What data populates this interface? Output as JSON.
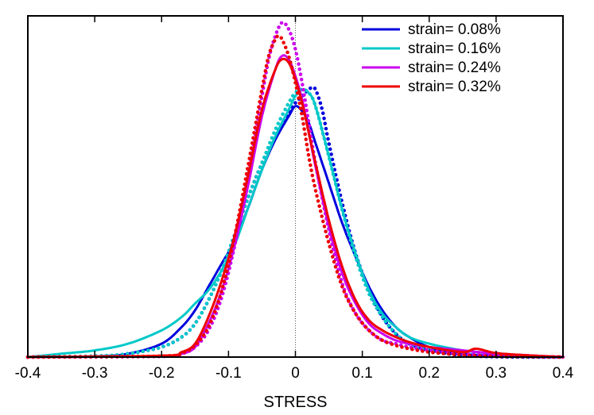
{
  "chart_data": {
    "type": "line",
    "title": "",
    "xlabel": "STRESS",
    "ylabel": "",
    "xlim": [
      -0.4,
      0.4
    ],
    "ylim": [
      0,
      1.02
    ],
    "xticks": [
      "-0.4",
      "-0.3",
      "-0.2",
      "-0.1",
      "0",
      "0.1",
      "0.2",
      "0.3",
      "0.4"
    ],
    "grid": false,
    "zero_line": true,
    "legend": "top-right",
    "series": [
      {
        "name": "strain= 0.08%",
        "color": "#0000dd",
        "solid": {
          "x": [
            -0.4,
            -0.3,
            -0.25,
            -0.2,
            -0.17,
            -0.15,
            -0.13,
            -0.11,
            -0.09,
            -0.07,
            -0.05,
            -0.03,
            -0.01,
            0.0,
            0.01,
            0.02,
            0.03,
            0.05,
            0.07,
            0.09,
            0.11,
            0.13,
            0.15,
            0.17,
            0.2,
            0.25,
            0.3,
            0.35,
            0.4
          ],
          "y": [
            0.0,
            0.002,
            0.01,
            0.04,
            0.09,
            0.14,
            0.21,
            0.28,
            0.35,
            0.45,
            0.56,
            0.65,
            0.72,
            0.75,
            0.735,
            0.7,
            0.64,
            0.52,
            0.4,
            0.3,
            0.21,
            0.14,
            0.09,
            0.06,
            0.03,
            0.01,
            0.004,
            0.001,
            0.0
          ]
        },
        "dotted": {
          "x": [
            -0.4,
            -0.3,
            -0.25,
            -0.2,
            -0.17,
            -0.15,
            -0.13,
            -0.11,
            -0.09,
            -0.07,
            -0.05,
            -0.03,
            -0.01,
            0.0,
            0.01,
            0.02,
            0.025,
            0.03,
            0.04,
            0.05,
            0.07,
            0.09,
            0.11,
            0.13,
            0.15,
            0.17,
            0.2,
            0.25,
            0.3,
            0.35,
            0.4
          ],
          "y": [
            0.0,
            0.002,
            0.01,
            0.03,
            0.06,
            0.1,
            0.17,
            0.26,
            0.37,
            0.48,
            0.58,
            0.66,
            0.73,
            0.76,
            0.78,
            0.8,
            0.805,
            0.8,
            0.74,
            0.64,
            0.46,
            0.31,
            0.2,
            0.12,
            0.07,
            0.04,
            0.02,
            0.005,
            0.001,
            0.0,
            0.0
          ]
        }
      },
      {
        "name": "strain= 0.16%",
        "color": "#00c8c8",
        "solid": {
          "x": [
            -0.4,
            -0.35,
            -0.3,
            -0.25,
            -0.2,
            -0.17,
            -0.15,
            -0.13,
            -0.11,
            -0.09,
            -0.07,
            -0.05,
            -0.03,
            -0.01,
            0.0,
            0.01,
            0.02,
            0.03,
            0.05,
            0.07,
            0.09,
            0.11,
            0.13,
            0.15,
            0.17,
            0.2,
            0.25,
            0.3,
            0.35,
            0.4
          ],
          "y": [
            0.0,
            0.01,
            0.02,
            0.04,
            0.08,
            0.12,
            0.16,
            0.2,
            0.26,
            0.34,
            0.45,
            0.56,
            0.66,
            0.74,
            0.78,
            0.8,
            0.79,
            0.75,
            0.6,
            0.44,
            0.31,
            0.2,
            0.13,
            0.09,
            0.06,
            0.04,
            0.02,
            0.01,
            0.004,
            0.0
          ]
        },
        "dotted": {
          "x": [
            -0.4,
            -0.3,
            -0.25,
            -0.2,
            -0.17,
            -0.15,
            -0.13,
            -0.11,
            -0.09,
            -0.07,
            -0.05,
            -0.03,
            -0.01,
            0.0,
            0.01,
            0.02,
            0.03,
            0.05,
            0.07,
            0.09,
            0.11,
            0.13,
            0.15,
            0.17,
            0.2,
            0.25,
            0.3,
            0.35,
            0.4
          ],
          "y": [
            0.0,
            0.003,
            0.01,
            0.03,
            0.06,
            0.1,
            0.17,
            0.26,
            0.37,
            0.48,
            0.58,
            0.68,
            0.76,
            0.79,
            0.8,
            0.79,
            0.75,
            0.6,
            0.44,
            0.3,
            0.19,
            0.12,
            0.07,
            0.04,
            0.02,
            0.006,
            0.002,
            0.0,
            0.0
          ]
        }
      },
      {
        "name": "strain= 0.24%",
        "color": "#cc00ee",
        "solid": {
          "x": [
            -0.4,
            -0.2,
            -0.17,
            -0.15,
            -0.13,
            -0.11,
            -0.09,
            -0.07,
            -0.05,
            -0.03,
            -0.02,
            -0.01,
            0.0,
            0.01,
            0.02,
            0.03,
            0.05,
            0.07,
            0.09,
            0.11,
            0.13,
            0.15,
            0.17,
            0.2,
            0.25,
            0.3,
            0.35,
            0.4
          ],
          "y": [
            0.0,
            0.003,
            0.01,
            0.03,
            0.1,
            0.2,
            0.34,
            0.52,
            0.72,
            0.86,
            0.9,
            0.89,
            0.84,
            0.77,
            0.67,
            0.57,
            0.39,
            0.25,
            0.16,
            0.1,
            0.07,
            0.05,
            0.04,
            0.03,
            0.02,
            0.01,
            0.005,
            0.0
          ]
        },
        "dotted": {
          "x": [
            -0.4,
            -0.2,
            -0.17,
            -0.15,
            -0.13,
            -0.11,
            -0.09,
            -0.07,
            -0.05,
            -0.04,
            -0.03,
            -0.02,
            -0.01,
            0.0,
            0.01,
            0.02,
            0.03,
            0.05,
            0.07,
            0.09,
            0.11,
            0.13,
            0.15,
            0.17,
            0.2,
            0.25,
            0.3,
            0.35,
            0.4
          ],
          "y": [
            0.0,
            0.002,
            0.01,
            0.03,
            0.08,
            0.18,
            0.34,
            0.55,
            0.78,
            0.89,
            0.96,
            1.0,
            0.98,
            0.92,
            0.82,
            0.7,
            0.58,
            0.38,
            0.22,
            0.13,
            0.08,
            0.05,
            0.04,
            0.03,
            0.02,
            0.01,
            0.005,
            0.002,
            0.0
          ]
        }
      },
      {
        "name": "strain= 0.32%",
        "color": "#ee0000",
        "solid": {
          "x": [
            -0.4,
            -0.2,
            -0.17,
            -0.15,
            -0.13,
            -0.11,
            -0.09,
            -0.07,
            -0.05,
            -0.03,
            -0.02,
            -0.01,
            0.0,
            0.01,
            0.02,
            0.03,
            0.05,
            0.07,
            0.09,
            0.11,
            0.13,
            0.15,
            0.17,
            0.2,
            0.25,
            0.27,
            0.3,
            0.35,
            0.4
          ],
          "y": [
            0.0,
            0.004,
            0.015,
            0.04,
            0.12,
            0.23,
            0.37,
            0.55,
            0.74,
            0.86,
            0.89,
            0.88,
            0.83,
            0.76,
            0.67,
            0.58,
            0.41,
            0.27,
            0.17,
            0.11,
            0.08,
            0.06,
            0.045,
            0.03,
            0.015,
            0.025,
            0.012,
            0.005,
            0.0
          ]
        },
        "dotted": {
          "x": [
            -0.4,
            -0.2,
            -0.17,
            -0.15,
            -0.13,
            -0.11,
            -0.09,
            -0.07,
            -0.05,
            -0.04,
            -0.03,
            -0.025,
            -0.02,
            -0.01,
            0.0,
            0.01,
            0.02,
            0.03,
            0.05,
            0.07,
            0.09,
            0.11,
            0.13,
            0.15,
            0.17,
            0.2,
            0.25,
            0.3,
            0.35,
            0.4
          ],
          "y": [
            0.0,
            0.003,
            0.012,
            0.035,
            0.09,
            0.2,
            0.37,
            0.58,
            0.8,
            0.9,
            0.95,
            0.96,
            0.95,
            0.9,
            0.82,
            0.72,
            0.6,
            0.5,
            0.34,
            0.21,
            0.13,
            0.08,
            0.05,
            0.035,
            0.025,
            0.015,
            0.006,
            0.002,
            0.001,
            0.0
          ]
        }
      }
    ]
  }
}
